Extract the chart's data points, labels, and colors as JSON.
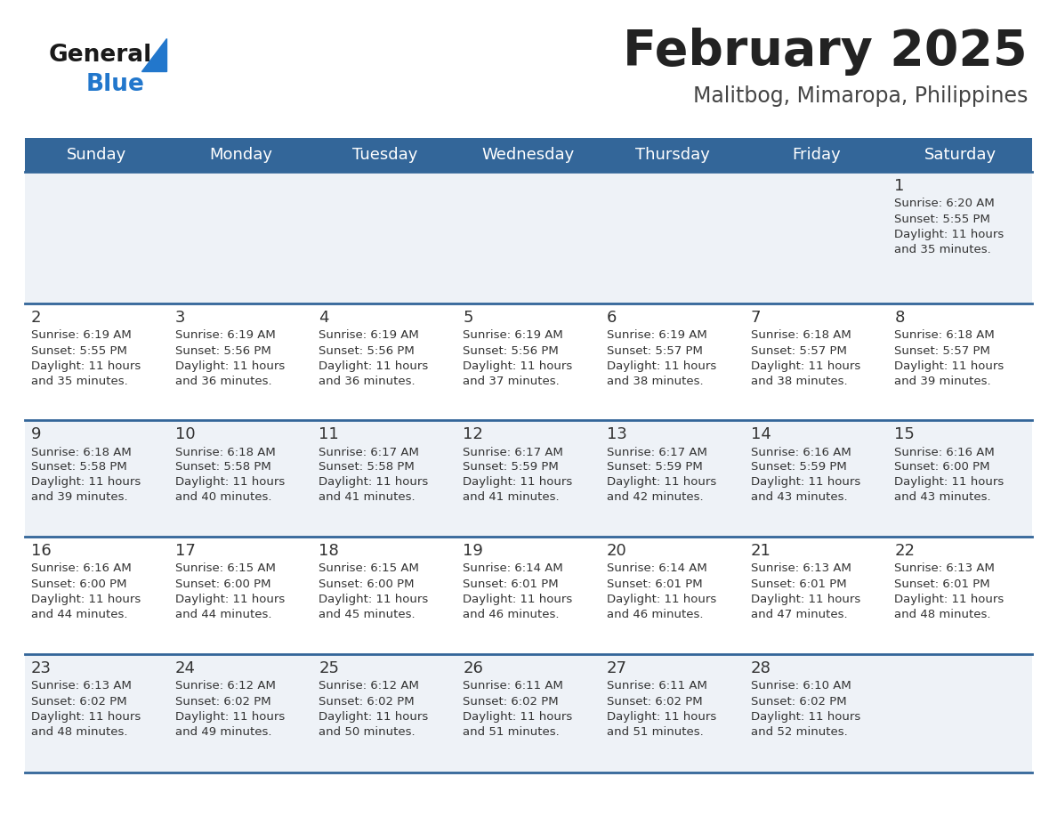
{
  "title": "February 2025",
  "subtitle": "Malitbog, Mimaropa, Philippines",
  "days_of_week": [
    "Sunday",
    "Monday",
    "Tuesday",
    "Wednesday",
    "Thursday",
    "Friday",
    "Saturday"
  ],
  "header_bg": "#336699",
  "header_text_color": "#ffffff",
  "cell_bg_odd": "#eef2f7",
  "cell_bg_even": "#ffffff",
  "divider_color": "#336699",
  "text_color": "#333333",
  "day_num_color": "#333333",
  "title_color": "#222222",
  "subtitle_color": "#444444",
  "logo_general_color": "#1a1a1a",
  "logo_blue_color": "#2277cc",
  "calendar_data": [
    [
      null,
      null,
      null,
      null,
      null,
      null,
      {
        "day": 1,
        "sunrise": "6:20 AM",
        "sunset": "5:55 PM",
        "daylight_hours": 11,
        "daylight_minutes": 35
      }
    ],
    [
      {
        "day": 2,
        "sunrise": "6:19 AM",
        "sunset": "5:55 PM",
        "daylight_hours": 11,
        "daylight_minutes": 35
      },
      {
        "day": 3,
        "sunrise": "6:19 AM",
        "sunset": "5:56 PM",
        "daylight_hours": 11,
        "daylight_minutes": 36
      },
      {
        "day": 4,
        "sunrise": "6:19 AM",
        "sunset": "5:56 PM",
        "daylight_hours": 11,
        "daylight_minutes": 36
      },
      {
        "day": 5,
        "sunrise": "6:19 AM",
        "sunset": "5:56 PM",
        "daylight_hours": 11,
        "daylight_minutes": 37
      },
      {
        "day": 6,
        "sunrise": "6:19 AM",
        "sunset": "5:57 PM",
        "daylight_hours": 11,
        "daylight_minutes": 38
      },
      {
        "day": 7,
        "sunrise": "6:18 AM",
        "sunset": "5:57 PM",
        "daylight_hours": 11,
        "daylight_minutes": 38
      },
      {
        "day": 8,
        "sunrise": "6:18 AM",
        "sunset": "5:57 PM",
        "daylight_hours": 11,
        "daylight_minutes": 39
      }
    ],
    [
      {
        "day": 9,
        "sunrise": "6:18 AM",
        "sunset": "5:58 PM",
        "daylight_hours": 11,
        "daylight_minutes": 39
      },
      {
        "day": 10,
        "sunrise": "6:18 AM",
        "sunset": "5:58 PM",
        "daylight_hours": 11,
        "daylight_minutes": 40
      },
      {
        "day": 11,
        "sunrise": "6:17 AM",
        "sunset": "5:58 PM",
        "daylight_hours": 11,
        "daylight_minutes": 41
      },
      {
        "day": 12,
        "sunrise": "6:17 AM",
        "sunset": "5:59 PM",
        "daylight_hours": 11,
        "daylight_minutes": 41
      },
      {
        "day": 13,
        "sunrise": "6:17 AM",
        "sunset": "5:59 PM",
        "daylight_hours": 11,
        "daylight_minutes": 42
      },
      {
        "day": 14,
        "sunrise": "6:16 AM",
        "sunset": "5:59 PM",
        "daylight_hours": 11,
        "daylight_minutes": 43
      },
      {
        "day": 15,
        "sunrise": "6:16 AM",
        "sunset": "6:00 PM",
        "daylight_hours": 11,
        "daylight_minutes": 43
      }
    ],
    [
      {
        "day": 16,
        "sunrise": "6:16 AM",
        "sunset": "6:00 PM",
        "daylight_hours": 11,
        "daylight_minutes": 44
      },
      {
        "day": 17,
        "sunrise": "6:15 AM",
        "sunset": "6:00 PM",
        "daylight_hours": 11,
        "daylight_minutes": 44
      },
      {
        "day": 18,
        "sunrise": "6:15 AM",
        "sunset": "6:00 PM",
        "daylight_hours": 11,
        "daylight_minutes": 45
      },
      {
        "day": 19,
        "sunrise": "6:14 AM",
        "sunset": "6:01 PM",
        "daylight_hours": 11,
        "daylight_minutes": 46
      },
      {
        "day": 20,
        "sunrise": "6:14 AM",
        "sunset": "6:01 PM",
        "daylight_hours": 11,
        "daylight_minutes": 46
      },
      {
        "day": 21,
        "sunrise": "6:13 AM",
        "sunset": "6:01 PM",
        "daylight_hours": 11,
        "daylight_minutes": 47
      },
      {
        "day": 22,
        "sunrise": "6:13 AM",
        "sunset": "6:01 PM",
        "daylight_hours": 11,
        "daylight_minutes": 48
      }
    ],
    [
      {
        "day": 23,
        "sunrise": "6:13 AM",
        "sunset": "6:02 PM",
        "daylight_hours": 11,
        "daylight_minutes": 48
      },
      {
        "day": 24,
        "sunrise": "6:12 AM",
        "sunset": "6:02 PM",
        "daylight_hours": 11,
        "daylight_minutes": 49
      },
      {
        "day": 25,
        "sunrise": "6:12 AM",
        "sunset": "6:02 PM",
        "daylight_hours": 11,
        "daylight_minutes": 50
      },
      {
        "day": 26,
        "sunrise": "6:11 AM",
        "sunset": "6:02 PM",
        "daylight_hours": 11,
        "daylight_minutes": 51
      },
      {
        "day": 27,
        "sunrise": "6:11 AM",
        "sunset": "6:02 PM",
        "daylight_hours": 11,
        "daylight_minutes": 51
      },
      {
        "day": 28,
        "sunrise": "6:10 AM",
        "sunset": "6:02 PM",
        "daylight_hours": 11,
        "daylight_minutes": 52
      },
      null
    ]
  ],
  "figsize": [
    11.88,
    9.18
  ],
  "dpi": 100
}
